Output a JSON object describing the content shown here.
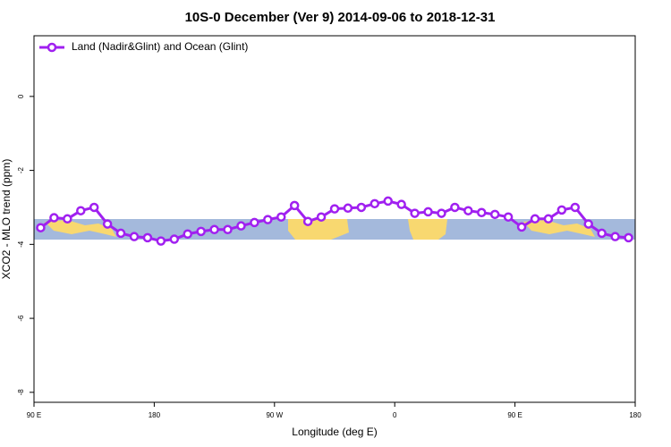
{
  "chart_data": {
    "type": "line",
    "title": "10S-0 December (Ver 9)   2014-09-06 to 2018-12-31",
    "x_label": "Longitude (deg E)",
    "y_label": "XCO2 - MLO trend (ppm)",
    "x": [
      95,
      105,
      115,
      125,
      135,
      145,
      155,
      165,
      175,
      185,
      195,
      205,
      215,
      225,
      235,
      245,
      255,
      265,
      275,
      285,
      295,
      305,
      315,
      325,
      335,
      345,
      355,
      365,
      375,
      385,
      395,
      405,
      415,
      425,
      435,
      445,
      455,
      465,
      475,
      485,
      495,
      505,
      515,
      525,
      535
    ],
    "series": [
      {
        "name": "Land (Nadir&Glint) and Ocean (Glint)",
        "color": "#a020f0",
        "values": [
          -3.55,
          -3.28,
          -3.31,
          -3.09,
          -3.0,
          -3.45,
          -3.7,
          -3.79,
          -3.82,
          -3.91,
          -3.86,
          -3.72,
          -3.65,
          -3.6,
          -3.6,
          -3.5,
          -3.41,
          -3.33,
          -3.26,
          -2.95,
          -3.38,
          -3.26,
          -3.04,
          -3.02,
          -3.0,
          -2.9,
          -2.83,
          -2.92,
          -3.16,
          -3.12,
          -3.16,
          -3.0,
          -3.09,
          -3.14,
          -3.19,
          -3.26,
          -3.53,
          -3.31,
          -3.31,
          -3.07,
          -3.0,
          -3.45,
          -3.7,
          -3.79,
          -3.82
        ]
      }
    ],
    "xlim": [
      90,
      540
    ],
    "xticks": [
      {
        "value": 90,
        "label": "90 E"
      },
      180,
      {
        "value": 270,
        "label": "90 W"
      },
      {
        "value": 360,
        "label": "0"
      },
      {
        "value": 450,
        "label": "90 E"
      },
      {
        "value": 540,
        "label": "180"
      }
    ],
    "ylim": [
      -8.27,
      1.64
    ],
    "yticks": [
      0,
      -2,
      -4,
      -6,
      -8
    ],
    "legend": "top-left"
  }
}
